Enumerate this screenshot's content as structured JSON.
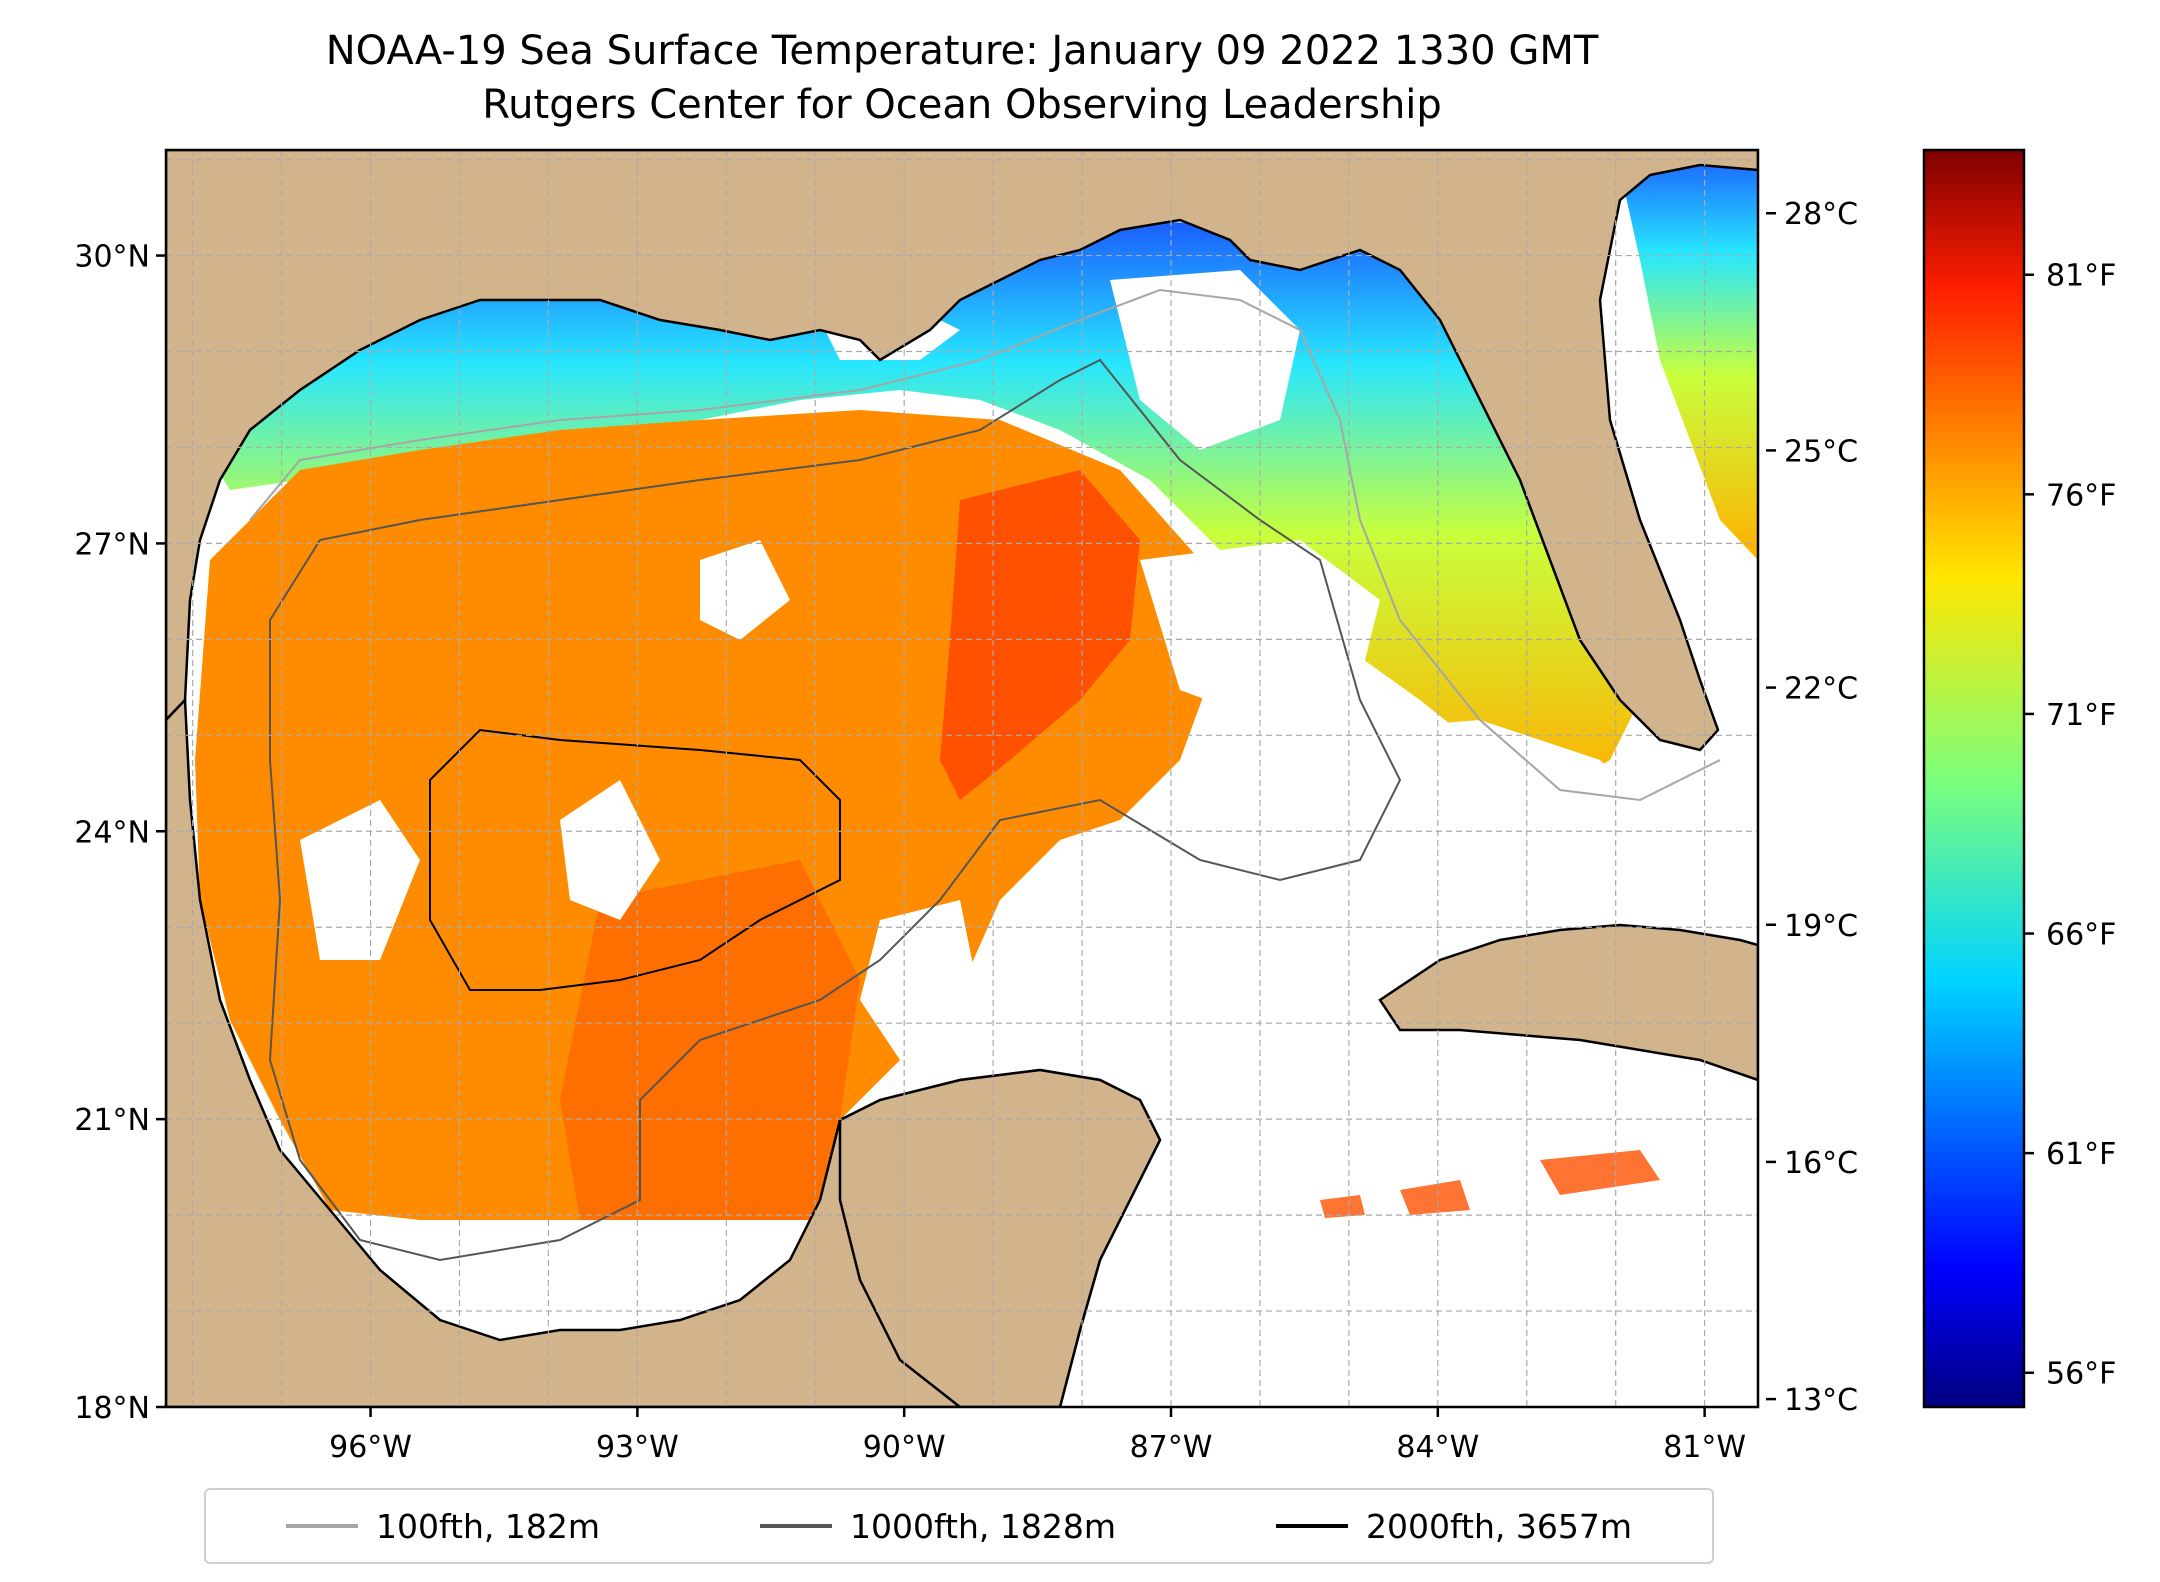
{
  "title": {
    "line1": "NOAA-19 Sea Surface Temperature: January 09 2022 1330 GMT",
    "line2": "Rutgers Center for Ocean Observing Leadership"
  },
  "map": {
    "lat_range": [
      18,
      31.1
    ],
    "lon_range": [
      -98.3,
      -80.4
    ],
    "lat_ticks": [
      {
        "value": 18,
        "label": "18°N"
      },
      {
        "value": 21,
        "label": "21°N"
      },
      {
        "value": 24,
        "label": "24°N"
      },
      {
        "value": 27,
        "label": "27°N"
      },
      {
        "value": 30,
        "label": "30°N"
      }
    ],
    "lon_ticks": [
      {
        "value": -96,
        "label": "96°W"
      },
      {
        "value": -93,
        "label": "93°W"
      },
      {
        "value": -90,
        "label": "90°W"
      },
      {
        "value": -87,
        "label": "87°W"
      },
      {
        "value": -84,
        "label": "84°W"
      },
      {
        "value": -81,
        "label": "81°W"
      }
    ],
    "grid": true,
    "land_color": "#d2b48c",
    "coast_color": "#000000"
  },
  "colorbar": {
    "colormap": "jet",
    "celsius_range": [
      12.9,
      28.8
    ],
    "celsius_ticks": [
      {
        "value": 13,
        "label": "13°C"
      },
      {
        "value": 16,
        "label": "16°C"
      },
      {
        "value": 19,
        "label": "19°C"
      },
      {
        "value": 22,
        "label": "22°C"
      },
      {
        "value": 25,
        "label": "25°C"
      },
      {
        "value": 28,
        "label": "28°C"
      }
    ],
    "fahrenheit_ticks": [
      {
        "value": 56,
        "label": "56°F"
      },
      {
        "value": 61,
        "label": "61°F"
      },
      {
        "value": 66,
        "label": "66°F"
      },
      {
        "value": 71,
        "label": "71°F"
      },
      {
        "value": 76,
        "label": "76°F"
      },
      {
        "value": 81,
        "label": "81°F"
      }
    ]
  },
  "legend": [
    {
      "label": "100fth, 182m",
      "color": "#a6a6a6"
    },
    {
      "label": "1000fth, 1828m",
      "color": "#555555"
    },
    {
      "label": "2000fth, 3657m",
      "color": "#000000"
    }
  ]
}
